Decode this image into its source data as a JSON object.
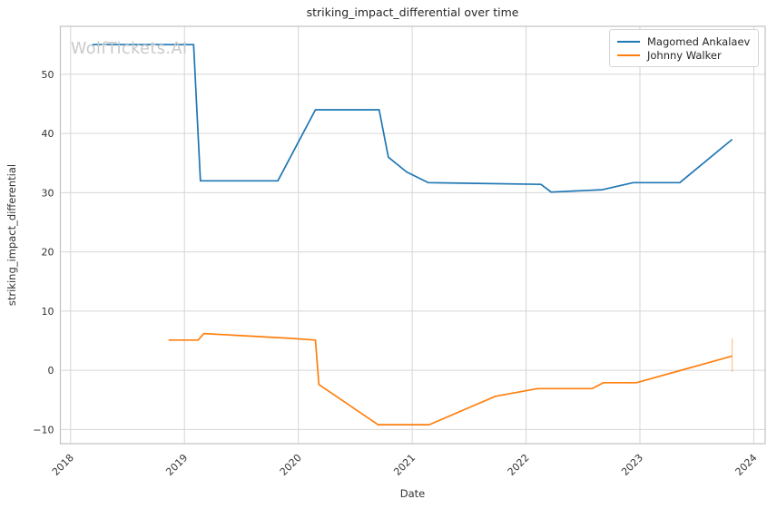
{
  "chart_data": {
    "type": "line",
    "title": "striking_impact_differential over time",
    "xlabel": "Date",
    "ylabel": "striking_impact_differential",
    "watermark": "WolfTickets.AI",
    "grid": true,
    "legend_position": "upper right",
    "xlim": [
      2017.91,
      2024.1
    ],
    "ylim": [
      -12.4,
      58.1
    ],
    "x_ticks": [
      {
        "v": 2018,
        "label": "2018"
      },
      {
        "v": 2019,
        "label": "2019"
      },
      {
        "v": 2020,
        "label": "2020"
      },
      {
        "v": 2021,
        "label": "2021"
      },
      {
        "v": 2022,
        "label": "2022"
      },
      {
        "v": 2023,
        "label": "2023"
      },
      {
        "v": 2024,
        "label": "2024"
      }
    ],
    "y_ticks": [
      {
        "v": -10,
        "label": "−10"
      },
      {
        "v": 0,
        "label": "0"
      },
      {
        "v": 10,
        "label": "10"
      },
      {
        "v": 20,
        "label": "20"
      },
      {
        "v": 30,
        "label": "30"
      },
      {
        "v": 40,
        "label": "40"
      },
      {
        "v": 50,
        "label": "50"
      }
    ],
    "series": [
      {
        "name": "Magomed Ankalaev",
        "color": "#1f77b4",
        "x": [
          2018.19,
          2019.08,
          2019.14,
          2019.82,
          2020.15,
          2020.71,
          2020.79,
          2020.95,
          2021.14,
          2022.13,
          2022.22,
          2022.67,
          2022.94,
          2023.35,
          2023.81
        ],
        "y": [
          55,
          55,
          32,
          32,
          44,
          44,
          36,
          33.5,
          31.7,
          31.4,
          30.1,
          30.5,
          31.7,
          31.7,
          39
        ]
      },
      {
        "name": "Johnny Walker",
        "color": "#ff7f0e",
        "x": [
          2018.86,
          2019.12,
          2019.17,
          2019.93,
          2020.15,
          2020.18,
          2020.7,
          2021.15,
          2021.73,
          2022.1,
          2022.58,
          2022.68,
          2022.97,
          2023.81
        ],
        "y": [
          5.1,
          5.1,
          6.2,
          5.4,
          5.1,
          -2.4,
          -9.2,
          -9.2,
          -4.4,
          -3.1,
          -3.1,
          -2.1,
          -2.1,
          2.4
        ]
      }
    ],
    "error_bar": {
      "series": "Johnny Walker",
      "x": 2023.81,
      "y_low": -0.3,
      "y_high": 5.4,
      "color": "#ff7f0e",
      "opacity": 0.45
    }
  }
}
